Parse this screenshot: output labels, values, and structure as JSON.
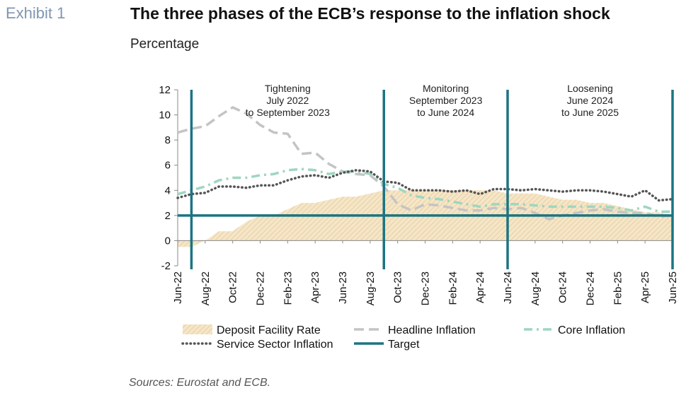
{
  "header": {
    "exhibit": "Exhibit 1",
    "title": "The three phases of the ECB’s response to the inflation shock",
    "subtitle": "Percentage"
  },
  "footer": {
    "source": "Sources: Eurostat and ECB."
  },
  "colors": {
    "deposit_fill": "#f5e6c8",
    "deposit_hatch": "#e9cfa0",
    "headline": "#c4c4c4",
    "core": "#9fd6bf",
    "service": "#555555",
    "target": "#1b7482",
    "axis": "#888888"
  },
  "chart_data": {
    "type": "line",
    "x": [
      "Jun-22",
      "Jul-22",
      "Aug-22",
      "Sep-22",
      "Oct-22",
      "Nov-22",
      "Dec-22",
      "Jan-23",
      "Feb-23",
      "Mar-23",
      "Apr-23",
      "May-23",
      "Jun-23",
      "Jul-23",
      "Aug-23",
      "Sep-23",
      "Oct-23",
      "Nov-23",
      "Dec-23",
      "Jan-24",
      "Feb-24",
      "Mar-24",
      "Apr-24",
      "May-24",
      "Jun-24",
      "Jul-24",
      "Aug-24",
      "Sep-24",
      "Oct-24",
      "Nov-24",
      "Dec-24",
      "Jan-25",
      "Feb-25",
      "Mar-25",
      "Apr-25",
      "May-25",
      "Jun-25"
    ],
    "x_tick_labels": [
      "Jun-22",
      "Aug-22",
      "Oct-22",
      "Dec-22",
      "Feb-23",
      "Apr-23",
      "Jun-23",
      "Aug-23",
      "Oct-23",
      "Dec-23",
      "Feb-24",
      "Apr-24",
      "Jun-24",
      "Aug-24",
      "Oct-24",
      "Dec-24",
      "Feb-25",
      "Apr-25",
      "Jun-25"
    ],
    "ylim": [
      -2,
      12
    ],
    "y_ticks": [
      -2,
      0,
      2,
      4,
      6,
      8,
      10,
      12
    ],
    "series": [
      {
        "name": "Deposit Facility Rate",
        "style": "area",
        "values": [
          -0.5,
          -0.5,
          0,
          0.75,
          0.75,
          1.5,
          2,
          2,
          2.5,
          3,
          3,
          3.25,
          3.5,
          3.5,
          3.75,
          4,
          4,
          4,
          4,
          4,
          4,
          4,
          4,
          4,
          3.75,
          3.75,
          3.75,
          3.5,
          3.25,
          3.25,
          3,
          3,
          2.75,
          2.5,
          2.25,
          2.25,
          2
        ]
      },
      {
        "name": "Headline Inflation",
        "style": "dashed",
        "values": [
          8.6,
          8.9,
          9.1,
          9.9,
          10.6,
          10.1,
          9.2,
          8.6,
          8.5,
          6.9,
          7.0,
          6.1,
          5.5,
          5.3,
          5.2,
          4.3,
          2.9,
          2.4,
          2.9,
          2.8,
          2.6,
          2.4,
          2.4,
          2.6,
          2.5,
          2.6,
          2.2,
          1.7,
          2.0,
          2.2,
          2.4,
          2.5,
          2.3,
          2.2,
          2.2,
          1.9,
          2.0
        ]
      },
      {
        "name": "Core Inflation",
        "style": "dashdot",
        "values": [
          3.7,
          4.0,
          4.3,
          4.8,
          5.0,
          5.0,
          5.2,
          5.3,
          5.6,
          5.7,
          5.6,
          5.3,
          5.5,
          5.5,
          5.3,
          4.5,
          4.2,
          3.6,
          3.4,
          3.3,
          3.1,
          2.9,
          2.7,
          2.9,
          2.9,
          2.9,
          2.8,
          2.7,
          2.7,
          2.7,
          2.7,
          2.7,
          2.6,
          2.4,
          2.7,
          2.3,
          2.3
        ]
      },
      {
        "name": "Service Sector Inflation",
        "style": "dotted",
        "values": [
          3.4,
          3.7,
          3.8,
          4.3,
          4.3,
          4.2,
          4.4,
          4.4,
          4.8,
          5.1,
          5.2,
          5.0,
          5.4,
          5.6,
          5.5,
          4.7,
          4.6,
          4.0,
          4.0,
          4.0,
          3.9,
          4.0,
          3.7,
          4.1,
          4.1,
          4.0,
          4.1,
          4.0,
          3.9,
          4.0,
          4.0,
          3.9,
          3.7,
          3.5,
          4.0,
          3.2,
          3.3
        ]
      },
      {
        "name": "Target",
        "style": "solid",
        "values": [
          2,
          2,
          2,
          2,
          2,
          2,
          2,
          2,
          2,
          2,
          2,
          2,
          2,
          2,
          2,
          2,
          2,
          2,
          2,
          2,
          2,
          2,
          2,
          2,
          2,
          2,
          2,
          2,
          2,
          2,
          2,
          2,
          2,
          2,
          2,
          2,
          2
        ]
      }
    ],
    "phase_boundaries": [
      "Jul-22",
      "Sep-23",
      "Jun-24",
      "Jun-25"
    ],
    "phases": [
      {
        "lines": [
          "Tightening",
          "July 2022",
          "to September 2023"
        ],
        "from": "Jul-22",
        "to": "Sep-23"
      },
      {
        "lines": [
          "Monitoring",
          "September 2023",
          "to June 2024"
        ],
        "from": "Sep-23",
        "to": "Jun-24"
      },
      {
        "lines": [
          "Loosening",
          "June 2024",
          "to June 2025"
        ],
        "from": "Jun-24",
        "to": "Jun-25"
      }
    ],
    "legend": {
      "placement": "bottom",
      "entries": [
        "Deposit Facility Rate",
        "Headline Inflation",
        "Core Inflation",
        "Service Sector Inflation",
        "Target"
      ]
    }
  }
}
